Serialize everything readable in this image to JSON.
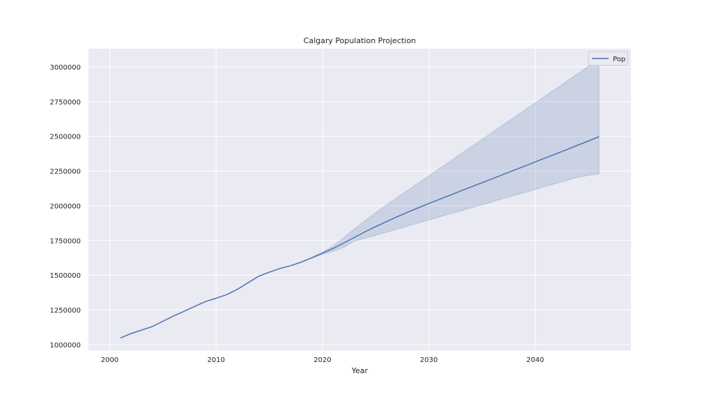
{
  "chart_data": {
    "type": "line",
    "title": "Calgary Population Projection",
    "xlabel": "Year",
    "ylabel": "",
    "xlim": [
      1998,
      2049
    ],
    "ylim": [
      960000,
      3130000
    ],
    "x_ticks": [
      2000,
      2010,
      2020,
      2030,
      2040
    ],
    "y_ticks": [
      1000000,
      1250000,
      1500000,
      1750000,
      2000000,
      2250000,
      2500000,
      2750000,
      3000000
    ],
    "grid": true,
    "legend_position": "top-right",
    "colors": {
      "background": "#eaeaf2",
      "grid": "#ffffff",
      "line": "#4c72b0",
      "band": "#4c72b0"
    },
    "series": [
      {
        "name": "Pop",
        "x": [
          2001,
          2002,
          2003,
          2004,
          2005,
          2006,
          2007,
          2008,
          2009,
          2010,
          2011,
          2012,
          2013,
          2014,
          2015,
          2016,
          2017,
          2018,
          2019,
          2020,
          2021,
          2022,
          2023,
          2024,
          2025,
          2026,
          2027,
          2028,
          2029,
          2030,
          2031,
          2032,
          2033,
          2034,
          2035,
          2036,
          2037,
          2038,
          2039,
          2040,
          2041,
          2042,
          2043,
          2044,
          2045,
          2046
        ],
        "values": [
          1047000,
          1080000,
          1105000,
          1130000,
          1168000,
          1206000,
          1240000,
          1275000,
          1310000,
          1334000,
          1360000,
          1398000,
          1445000,
          1492000,
          1522000,
          1548000,
          1568000,
          1594000,
          1625000,
          1658000,
          1692000,
          1732000,
          1772000,
          1812000,
          1849000,
          1885000,
          1920000,
          1953000,
          1985000,
          2016000,
          2046000,
          2076000,
          2106000,
          2136000,
          2166000,
          2195000,
          2225000,
          2255000,
          2285000,
          2315000,
          2345000,
          2375000,
          2405000,
          2436000,
          2466000,
          2497000
        ],
        "band_x": [
          2019,
          2020,
          2021,
          2022,
          2023,
          2024,
          2025,
          2026,
          2027,
          2028,
          2029,
          2030,
          2031,
          2032,
          2033,
          2034,
          2035,
          2036,
          2037,
          2038,
          2039,
          2040,
          2041,
          2042,
          2043,
          2044,
          2045,
          2046
        ],
        "band_upper": [
          1630000,
          1665000,
          1710000,
          1770000,
          1832000,
          1892000,
          1950000,
          2005000,
          2058000,
          2110000,
          2163000,
          2215000,
          2268000,
          2320000,
          2373000,
          2425000,
          2478000,
          2530000,
          2583000,
          2635000,
          2688000,
          2740000,
          2793000,
          2845000,
          2898000,
          2950000,
          3003000,
          3050000
        ],
        "band_lower": [
          1622000,
          1650000,
          1672000,
          1700000,
          1745000,
          1765000,
          1787000,
          1809000,
          1831000,
          1853000,
          1875000,
          1897000,
          1919000,
          1941000,
          1963000,
          1985000,
          2007000,
          2029000,
          2051000,
          2073000,
          2095000,
          2117000,
          2139000,
          2161000,
          2183000,
          2205000,
          2218000,
          2230000
        ]
      }
    ]
  }
}
